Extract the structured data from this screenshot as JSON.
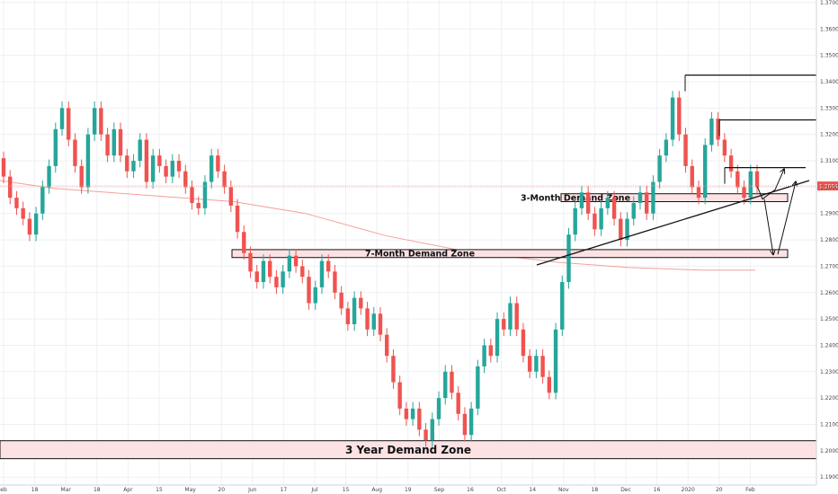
{
  "chart_data": {
    "type": "candlestick",
    "symbol_price_label": "1.30045",
    "y_axis_ticks": [
      "1.37000",
      "1.36000",
      "1.35000",
      "1.34000",
      "1.33000",
      "1.32000",
      "1.31000",
      "1.30000",
      "1.29000",
      "1.28000",
      "1.27000",
      "1.26000",
      "1.25000",
      "1.24000",
      "1.23000",
      "1.22000",
      "1.21000",
      "1.20000",
      "1.19000"
    ],
    "ylim": [
      1.187,
      1.371
    ],
    "x_axis_ticks": [
      "eb",
      "18",
      "Mar",
      "18",
      "Apr",
      "15",
      "May",
      "20",
      "Jun",
      "17",
      "Jul",
      "15",
      "Aug",
      "19",
      "Sep",
      "16",
      "Oct",
      "14",
      "Nov",
      "18",
      "Dec",
      "16",
      "2020",
      "20",
      "Feb"
    ],
    "grid": true,
    "colors": {
      "up": "#26a69a",
      "down": "#ef5350",
      "ma": "#f4a097",
      "zone_fill": "#fde2e4",
      "price_tag": "#ef5350"
    },
    "moving_average": [
      [
        0,
        1.3025
      ],
      [
        60,
        1.2995
      ],
      [
        180,
        1.2965
      ],
      [
        260,
        1.2945
      ],
      [
        340,
        1.29
      ],
      [
        430,
        1.2815
      ],
      [
        520,
        1.2755
      ],
      [
        620,
        1.2715
      ],
      [
        700,
        1.2695
      ],
      [
        780,
        1.2685
      ],
      [
        840,
        1.2685
      ]
    ],
    "candles": [
      [
        1.311,
        1.304
      ],
      [
        1.304,
        1.296
      ],
      [
        1.296,
        1.292
      ],
      [
        1.292,
        1.288
      ],
      [
        1.288,
        1.282
      ],
      [
        1.282,
        1.29
      ],
      [
        1.29,
        1.3
      ],
      [
        1.3,
        1.308
      ],
      [
        1.308,
        1.322
      ],
      [
        1.322,
        1.33
      ],
      [
        1.33,
        1.318
      ],
      [
        1.318,
        1.308
      ],
      [
        1.308,
        1.3
      ],
      [
        1.3,
        1.32
      ],
      [
        1.32,
        1.33
      ],
      [
        1.33,
        1.32
      ],
      [
        1.32,
        1.312
      ],
      [
        1.312,
        1.322
      ],
      [
        1.322,
        1.312
      ],
      [
        1.312,
        1.306
      ],
      [
        1.306,
        1.31
      ],
      [
        1.31,
        1.318
      ],
      [
        1.318,
        1.302
      ],
      [
        1.302,
        1.312
      ],
      [
        1.312,
        1.308
      ],
      [
        1.308,
        1.304
      ],
      [
        1.304,
        1.31
      ],
      [
        1.31,
        1.306
      ],
      [
        1.306,
        1.3
      ],
      [
        1.3,
        1.294
      ],
      [
        1.294,
        1.292
      ],
      [
        1.292,
        1.302
      ],
      [
        1.302,
        1.312
      ],
      [
        1.312,
        1.306
      ],
      [
        1.306,
        1.3
      ],
      [
        1.3,
        1.293
      ],
      [
        1.293,
        1.283
      ],
      [
        1.283,
        1.275
      ],
      [
        1.275,
        1.268
      ],
      [
        1.268,
        1.264
      ],
      [
        1.264,
        1.272
      ],
      [
        1.272,
        1.266
      ],
      [
        1.266,
        1.262
      ],
      [
        1.262,
        1.268
      ],
      [
        1.268,
        1.274
      ],
      [
        1.274,
        1.27
      ],
      [
        1.27,
        1.266
      ],
      [
        1.266,
        1.256
      ],
      [
        1.256,
        1.262
      ],
      [
        1.262,
        1.272
      ],
      [
        1.272,
        1.268
      ],
      [
        1.268,
        1.26
      ],
      [
        1.26,
        1.254
      ],
      [
        1.254,
        1.248
      ],
      [
        1.248,
        1.258
      ],
      [
        1.258,
        1.254
      ],
      [
        1.254,
        1.246
      ],
      [
        1.246,
        1.252
      ],
      [
        1.252,
        1.244
      ],
      [
        1.244,
        1.236
      ],
      [
        1.236,
        1.226
      ],
      [
        1.226,
        1.216
      ],
      [
        1.216,
        1.212
      ],
      [
        1.212,
        1.216
      ],
      [
        1.216,
        1.208
      ],
      [
        1.208,
        1.204
      ],
      [
        1.204,
        1.212
      ],
      [
        1.212,
        1.22
      ],
      [
        1.22,
        1.23
      ],
      [
        1.23,
        1.222
      ],
      [
        1.222,
        1.214
      ],
      [
        1.214,
        1.206
      ],
      [
        1.206,
        1.216
      ],
      [
        1.216,
        1.232
      ],
      [
        1.232,
        1.24
      ],
      [
        1.24,
        1.236
      ],
      [
        1.236,
        1.25
      ],
      [
        1.25,
        1.246
      ],
      [
        1.246,
        1.256
      ],
      [
        1.256,
        1.246
      ],
      [
        1.246,
        1.236
      ],
      [
        1.236,
        1.23
      ],
      [
        1.23,
        1.236
      ],
      [
        1.236,
        1.228
      ],
      [
        1.228,
        1.222
      ],
      [
        1.222,
        1.246
      ],
      [
        1.246,
        1.264
      ],
      [
        1.264,
        1.282
      ],
      [
        1.282,
        1.292
      ],
      [
        1.292,
        1.298
      ],
      [
        1.298,
        1.29
      ],
      [
        1.29,
        1.284
      ],
      [
        1.284,
        1.292
      ],
      [
        1.292,
        1.296
      ],
      [
        1.296,
        1.288
      ],
      [
        1.288,
        1.28
      ],
      [
        1.28,
        1.288
      ],
      [
        1.288,
        1.294
      ],
      [
        1.294,
        1.298
      ],
      [
        1.298,
        1.29
      ],
      [
        1.29,
        1.302
      ],
      [
        1.302,
        1.312
      ],
      [
        1.312,
        1.318
      ],
      [
        1.318,
        1.334
      ],
      [
        1.334,
        1.32
      ],
      [
        1.32,
        1.308
      ],
      [
        1.308,
        1.3
      ],
      [
        1.3,
        1.296
      ],
      [
        1.296,
        1.316
      ],
      [
        1.316,
        1.326
      ],
      [
        1.326,
        1.318
      ],
      [
        1.318,
        1.312
      ],
      [
        1.312,
        1.306
      ],
      [
        1.306,
        1.3
      ],
      [
        1.3,
        1.296
      ],
      [
        1.296,
        1.306
      ],
      [
        1.306,
        1.3
      ]
    ],
    "annotations": {
      "zones": [
        {
          "label": "3 Year Demand Zone",
          "y_top": 1.2038,
          "y_bottom": 1.197,
          "x_start": 0,
          "x_end": 908
        },
        {
          "label": "7-Month Demand Zone",
          "y_top": 1.2763,
          "y_bottom": 1.2733,
          "x_start": 258,
          "x_end": 876
        },
        {
          "label": "3-Month Demand Zone",
          "y_top": 1.2975,
          "y_bottom": 1.2945,
          "x_start": 624,
          "x_end": 876
        }
      ],
      "resistance_lines": [
        {
          "y": 1.3425,
          "x_start": 762,
          "x_end": 908
        },
        {
          "y": 1.3255,
          "x_start": 800,
          "x_end": 908
        },
        {
          "y": 1.3074,
          "x_start": 806,
          "x_end": 896
        }
      ],
      "trendline": {
        "from": [
          597,
          1.2705
        ],
        "to": [
          900,
          1.3025
        ]
      }
    }
  }
}
